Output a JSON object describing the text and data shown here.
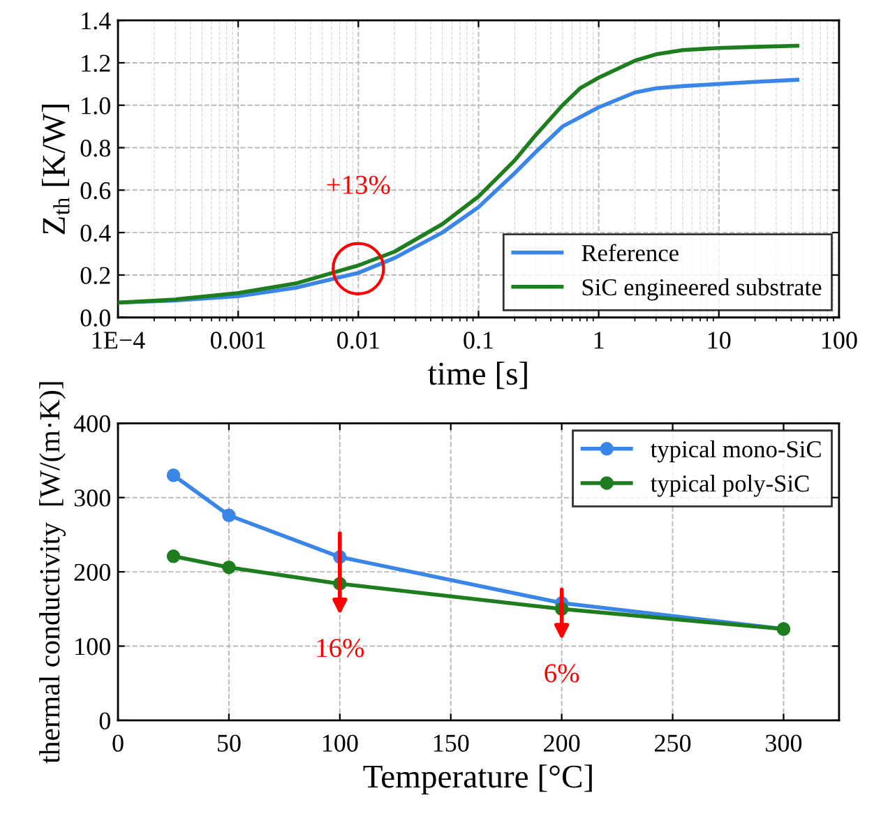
{
  "chart_data": [
    {
      "type": "line",
      "xlabel": "time [s]",
      "ylabel": "Z$_{th}$ [K/W]",
      "log": "x",
      "grid": true,
      "legend": "bottom right",
      "marker": "none",
      "line_style": "solid",
      "xlim": [
        0.0001,
        100
      ],
      "xticks": [
        {
          "value": 0.0001,
          "label": "1E−4"
        },
        0.001,
        0.01,
        0.1,
        1,
        10,
        100
      ],
      "ylim": [
        0,
        1.4
      ],
      "yticks": [
        {
          "value": 0,
          "label": "0.0"
        },
        0.2,
        0.4,
        0.6,
        0.8,
        {
          "value": 1,
          "label": "1.0"
        },
        1.2,
        1.4
      ],
      "series": [
        {
          "name": "Reference",
          "color": "#3a86e8",
          "x": [
            0.0001,
            0.0003,
            0.001,
            0.003,
            0.01,
            0.02,
            0.05,
            0.1,
            0.2,
            0.3,
            0.5,
            1,
            2,
            3,
            5,
            10,
            20,
            45
          ],
          "values": [
            0.07,
            0.08,
            0.1,
            0.14,
            0.21,
            0.28,
            0.4,
            0.52,
            0.68,
            0.78,
            0.9,
            0.99,
            1.06,
            1.08,
            1.09,
            1.1,
            1.11,
            1.12
          ]
        },
        {
          "name": "SiC engineered substrate",
          "color": "#1e7d1e",
          "x": [
            0.0001,
            0.0003,
            0.001,
            0.003,
            0.01,
            0.02,
            0.05,
            0.1,
            0.2,
            0.3,
            0.5,
            0.7,
            1,
            2,
            3,
            5,
            10,
            20,
            45
          ],
          "values": [
            0.07,
            0.085,
            0.115,
            0.16,
            0.245,
            0.31,
            0.44,
            0.57,
            0.74,
            0.86,
            1.0,
            1.08,
            1.13,
            1.21,
            1.24,
            1.26,
            1.27,
            1.275,
            1.28
          ]
        }
      ],
      "annotations": [
        {
          "text": "+13%",
          "x": 0.01,
          "y": 0.23
        }
      ]
    },
    {
      "type": "line",
      "xlabel": "Temperature [°C]",
      "ylabel": "thermal conductivity  [W/(m·K)]",
      "grid": true,
      "legend": "top right",
      "marker": "circle",
      "line_style": "solid",
      "x": [
        25,
        50,
        100,
        200,
        300
      ],
      "xlim": [
        0,
        325
      ],
      "xticks": [
        0,
        50,
        100,
        150,
        200,
        250,
        300
      ],
      "ylim": [
        0,
        400
      ],
      "yticks": [
        0,
        100,
        200,
        300,
        400
      ],
      "series": [
        {
          "name": "typical mono-SiC",
          "color": "#3a86e8",
          "values": [
            330,
            276,
            220,
            158,
            123
          ]
        },
        {
          "name": "typical poly-SiC",
          "color": "#1e7d1e",
          "values": [
            221,
            206,
            184,
            150,
            123
          ]
        }
      ],
      "annotations": [
        {
          "text": "16%",
          "x": 100,
          "y": 184
        },
        {
          "text": "6%",
          "x": 200,
          "y": 150
        }
      ]
    }
  ]
}
